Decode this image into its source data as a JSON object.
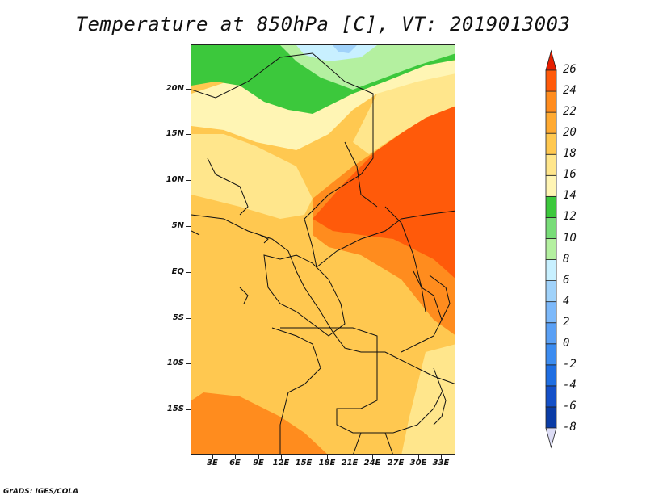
{
  "map": {
    "title": "Temperature at 850hPa [C], VT: 2019013003",
    "credit": "GrADS: IGES/COLA",
    "lat_labels": [
      {
        "value": 20,
        "text": "20N"
      },
      {
        "value": 15,
        "text": "15N"
      },
      {
        "value": 10,
        "text": "10N"
      },
      {
        "value": 5,
        "text": "5N"
      },
      {
        "value": 0,
        "text": "EQ"
      },
      {
        "value": -5,
        "text": "5S"
      },
      {
        "value": -10,
        "text": "10S"
      },
      {
        "value": -15,
        "text": "15S"
      }
    ],
    "lon_labels": [
      {
        "value": 3,
        "text": "3E"
      },
      {
        "value": 6,
        "text": "6E"
      },
      {
        "value": 9,
        "text": "9E"
      },
      {
        "value": 12,
        "text": "12E"
      },
      {
        "value": 15,
        "text": "15E"
      },
      {
        "value": 18,
        "text": "18E"
      },
      {
        "value": 21,
        "text": "21E"
      },
      {
        "value": 24,
        "text": "24E"
      },
      {
        "value": 27,
        "text": "27E"
      },
      {
        "value": 30,
        "text": "30E"
      },
      {
        "value": 33,
        "text": "33E"
      }
    ]
  },
  "colorbar": {
    "levels": [
      "-8",
      "-6",
      "-4",
      "-2",
      "0",
      "2",
      "4",
      "6",
      "8",
      "10",
      "12",
      "14",
      "16",
      "18",
      "20",
      "22",
      "24",
      "26"
    ],
    "colors": [
      "#000080",
      "#0a3ca6",
      "#1450c8",
      "#1f6ee2",
      "#3c8cf0",
      "#5aa0f5",
      "#7db9fa",
      "#a0d2fa",
      "#c8f0ff",
      "#b4f0a0",
      "#78dc78",
      "#3cc83c",
      "#fff5b4",
      "#ffe68c",
      "#ffc850",
      "#ffaa32",
      "#ff8c1e",
      "#ff5a0a",
      "#e61e00"
    ]
  }
}
